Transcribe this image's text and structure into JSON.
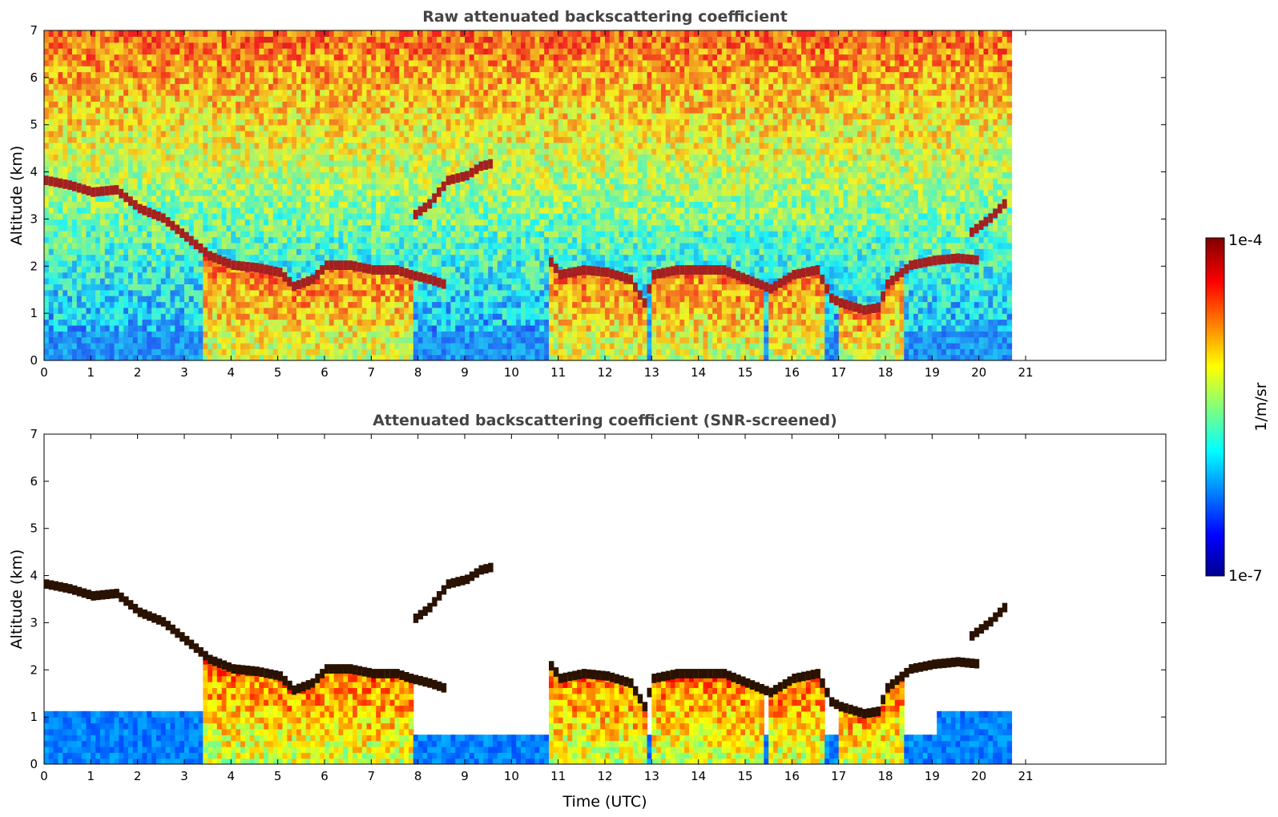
{
  "figure": {
    "colorbar": {
      "label": "1/m/sr",
      "max_label": "1e-4",
      "min_label": "1e-7",
      "scale": "log",
      "range": [
        1e-07,
        0.0001
      ],
      "colormap": "jet"
    }
  },
  "chart_data": [
    {
      "type": "heatmap",
      "title": "Raw attenuated backscattering coefficient",
      "xlabel": "",
      "ylabel": "Altitude (km)",
      "xlim": [
        0,
        24
      ],
      "ylim": [
        0,
        7
      ],
      "x_ticks": [
        "0",
        "1",
        "2",
        "3",
        "4",
        "5",
        "6",
        "7",
        "8",
        "9",
        "10",
        "11",
        "12",
        "13",
        "14",
        "15",
        "16",
        "17",
        "18",
        "19",
        "20",
        "21"
      ],
      "y_ticks": [
        "0",
        "1",
        "2",
        "3",
        "4",
        "5",
        "6",
        "7"
      ],
      "data_end_time": 20.7,
      "cloud_base_layer": [
        [
          0.0,
          3.8
        ],
        [
          0.5,
          3.7
        ],
        [
          1.0,
          3.55
        ],
        [
          1.5,
          3.6
        ],
        [
          2.0,
          3.2
        ],
        [
          2.5,
          3.0
        ],
        [
          3.0,
          2.6
        ],
        [
          3.5,
          2.2
        ],
        [
          4.0,
          2.0
        ],
        [
          4.5,
          1.95
        ],
        [
          5.0,
          1.85
        ],
        [
          5.3,
          1.55
        ],
        [
          5.7,
          1.7
        ],
        [
          6.0,
          2.0
        ],
        [
          6.5,
          2.0
        ],
        [
          7.0,
          1.9
        ],
        [
          7.5,
          1.9
        ],
        [
          7.8,
          1.8
        ],
        [
          8.2,
          1.7
        ],
        [
          8.5,
          1.6
        ]
      ],
      "elevated_layer": [
        [
          7.8,
          3.0
        ],
        [
          8.2,
          3.3
        ],
        [
          8.6,
          3.8
        ],
        [
          9.0,
          3.9
        ],
        [
          9.3,
          4.1
        ],
        [
          9.5,
          4.15
        ]
      ],
      "cloud_base_layer_2": [
        [
          10.7,
          2.2
        ],
        [
          11.0,
          1.8
        ],
        [
          11.5,
          1.9
        ],
        [
          12.0,
          1.85
        ],
        [
          12.5,
          1.7
        ],
        [
          12.8,
          1.2
        ],
        [
          13.0,
          1.8
        ],
        [
          13.5,
          1.9
        ],
        [
          14.0,
          1.9
        ],
        [
          14.5,
          1.9
        ],
        [
          15.0,
          1.7
        ],
        [
          15.5,
          1.5
        ],
        [
          16.0,
          1.8
        ],
        [
          16.5,
          1.9
        ],
        [
          16.8,
          1.3
        ],
        [
          17.0,
          1.2
        ],
        [
          17.5,
          1.05
        ],
        [
          17.8,
          1.1
        ],
        [
          18.0,
          1.6
        ],
        [
          18.5,
          2.0
        ],
        [
          19.0,
          2.1
        ],
        [
          19.5,
          2.15
        ],
        [
          20.0,
          2.1
        ]
      ],
      "rising_layer_end": [
        [
          19.8,
          2.7
        ],
        [
          20.2,
          3.0
        ],
        [
          20.6,
          3.4
        ]
      ]
    },
    {
      "type": "heatmap",
      "title": "Attenuated backscattering coefficient (SNR-screened)",
      "xlabel": "Time (UTC)",
      "ylabel": "Altitude (km)",
      "xlim": [
        0,
        24
      ],
      "ylim": [
        0,
        7
      ],
      "x_ticks": [
        "0",
        "1",
        "2",
        "3",
        "4",
        "5",
        "6",
        "7",
        "8",
        "9",
        "10",
        "11",
        "12",
        "13",
        "14",
        "15",
        "16",
        "17",
        "18",
        "19",
        "20",
        "21"
      ],
      "y_ticks": [
        "0",
        "1",
        "2",
        "3",
        "4",
        "5",
        "6",
        "7"
      ],
      "data_end_time": 20.7,
      "screened": true
    }
  ]
}
